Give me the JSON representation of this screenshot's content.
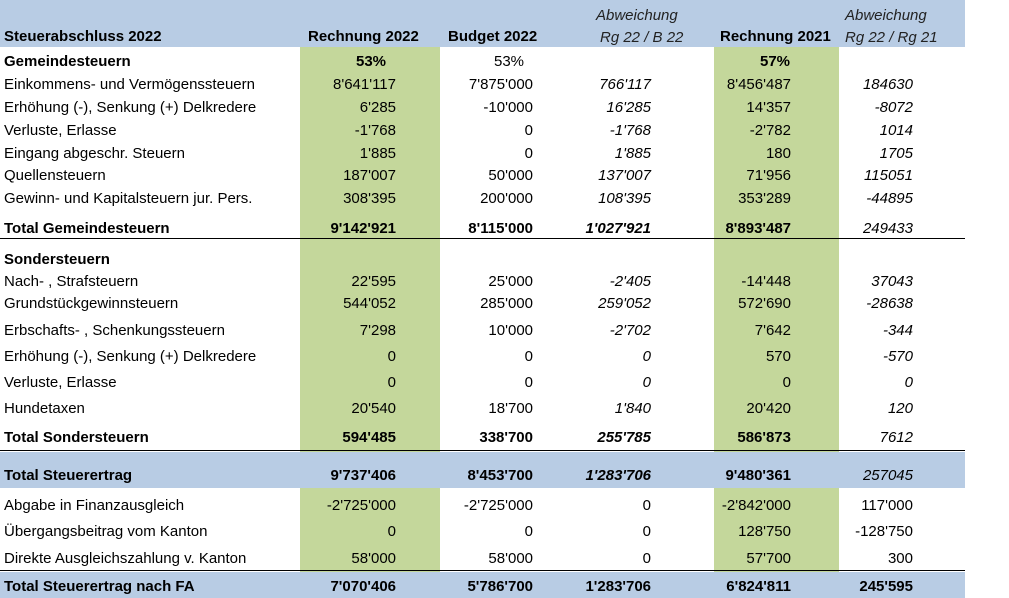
{
  "header": {
    "title": "Steuerabschluss 2022",
    "col1": "Rechnung 2022",
    "col2": "Budget 2022",
    "col3_top": "Abweichung",
    "col3_bottom": "Rg 22 / B 22",
    "col4": "Rechnung 2021",
    "col5_top": "Abweichung",
    "col5_bottom": "Rg 22 / Rg 21"
  },
  "colors": {
    "header_blue": "#b8cce4",
    "column_green": "#c4d79b"
  },
  "rows": [
    {
      "label": "Gemeindesteuern",
      "c1": "53%",
      "c2": "53%",
      "c3": "",
      "c4": "57%",
      "c5": "",
      "type": "section"
    },
    {
      "label": "Einkommens- und Vermögenssteuern",
      "c1": "8'641'117",
      "c2": "7'875'000",
      "c3": "766'117",
      "c4": "8'456'487",
      "c5": "184630",
      "type": "data"
    },
    {
      "label": "Erhöhung (-), Senkung (+) Delkredere",
      "c1": "6'285",
      "c2": "-10'000",
      "c3": "16'285",
      "c4": "14'357",
      "c5": "-8072",
      "type": "data"
    },
    {
      "label": "Verluste, Erlasse",
      "c1": "-1'768",
      "c2": "0",
      "c3": "-1'768",
      "c4": "-2'782",
      "c5": "1014",
      "type": "data"
    },
    {
      "label": "Eingang abgeschr. Steuern",
      "c1": "1'885",
      "c2": "0",
      "c3": "1'885",
      "c4": "180",
      "c5": "1705",
      "type": "data"
    },
    {
      "label": "Quellensteuern",
      "c1": "187'007",
      "c2": "50'000",
      "c3": "137'007",
      "c4": "71'956",
      "c5": "115051",
      "type": "data"
    },
    {
      "label": "Gewinn- und Kapitalsteuern jur. Pers.",
      "c1": "308'395",
      "c2": "200'000",
      "c3": "108'395",
      "c4": "353'289",
      "c5": "-44895",
      "type": "data"
    },
    {
      "label": "Total Gemeindesteuern",
      "c1": "9'142'921",
      "c2": "8'115'000",
      "c3": "1'027'921",
      "c4": "8'893'487",
      "c5": "249433",
      "type": "total"
    },
    {
      "label": "Sondersteuern",
      "c1": "",
      "c2": "",
      "c3": "",
      "c4": "",
      "c5": "",
      "type": "section"
    },
    {
      "label": "Nach- , Strafsteuern",
      "c1": "22'595",
      "c2": "25'000",
      "c3": "-2'405",
      "c4": "-14'448",
      "c5": "37043",
      "type": "data"
    },
    {
      "label": "Grundstückgewinnsteuern",
      "c1": "544'052",
      "c2": "285'000",
      "c3": "259'052",
      "c4": "572'690",
      "c5": "-28638",
      "type": "data"
    },
    {
      "label": "Erbschafts- , Schenkungssteuern",
      "c1": "7'298",
      "c2": "10'000",
      "c3": "-2'702",
      "c4": "7'642",
      "c5": "-344",
      "type": "data"
    },
    {
      "label": "Erhöhung (-), Senkung (+) Delkredere",
      "c1": "0",
      "c2": "0",
      "c3": "0",
      "c4": "570",
      "c5": "-570",
      "type": "data"
    },
    {
      "label": "Verluste, Erlasse",
      "c1": "0",
      "c2": "0",
      "c3": "0",
      "c4": "0",
      "c5": "0",
      "type": "data"
    },
    {
      "label": "Hundetaxen",
      "c1": "20'540",
      "c2": "18'700",
      "c3": "1'840",
      "c4": "20'420",
      "c5": "120",
      "type": "data"
    },
    {
      "label": "Total Sondersteuern",
      "c1": "594'485",
      "c2": "338'700",
      "c3": "255'785",
      "c4": "586'873",
      "c5": "7612",
      "type": "total"
    },
    {
      "label": "Total Steuerertrag",
      "c1": "9'737'406",
      "c2": "8'453'700",
      "c3": "1'283'706",
      "c4": "9'480'361",
      "c5": "257045",
      "type": "grand"
    },
    {
      "label": "Abgabe in Finanzausgleich",
      "c1": "-2'725'000",
      "c2": "-2'725'000",
      "c3": "0",
      "c4": "-2'842'000",
      "c5": "117'000",
      "type": "fa"
    },
    {
      "label": "Übergangsbeitrag vom Kanton",
      "c1": "0",
      "c2": "0",
      "c3": "0",
      "c4": "128'750",
      "c5": "-128'750",
      "type": "fa"
    },
    {
      "label": "Direkte Ausgleichszahlung v. Kanton",
      "c1": "58'000",
      "c2": "58'000",
      "c3": "0",
      "c4": "57'700",
      "c5": "300",
      "type": "fa"
    },
    {
      "label": "Total Steuerertrag nach FA",
      "c1": "7'070'406",
      "c2": "5'786'700",
      "c3": "1'283'706",
      "c4": "6'824'811",
      "c5": "245'595",
      "type": "final"
    }
  ]
}
